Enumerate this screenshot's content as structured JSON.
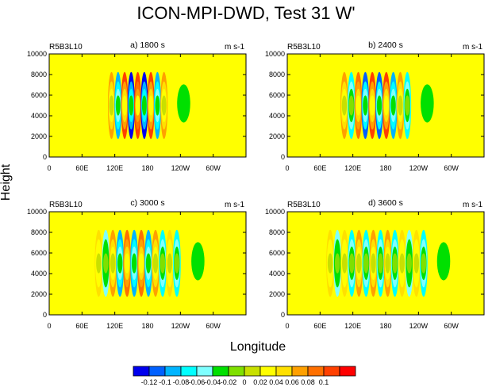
{
  "figure": {
    "title": "ICON-MPI-DWD, Test 31 W'",
    "shared_xlabel": "Longitude",
    "shared_ylabel": "Height"
  },
  "chart_data": [
    {
      "type": "heatmap",
      "left_label": "R5B3L10",
      "title": "a) 1800 s",
      "units": "m s-1",
      "x_ticks": [
        "0",
        "60E",
        "120E",
        "180",
        "120W",
        "60W"
      ],
      "y_ticks": [
        "0",
        "2000",
        "4000",
        "6000",
        "8000",
        "10000"
      ],
      "xlim": [
        0,
        360
      ],
      "ylim": [
        0,
        10000
      ],
      "wave_lon_range": [
        108,
        216
      ],
      "n_bands": 9,
      "band_amplitude": [
        0.07,
        0.08,
        0.1,
        0.12,
        0.12,
        0.12,
        0.1,
        0.08,
        0.07
      ],
      "bg_amplitude": 0.02,
      "bright_bands_lon": [
        [
          0,
          40
        ],
        [
          100,
          122
        ],
        [
          204,
          224
        ],
        [
          284,
          305
        ]
      ],
      "blob": {
        "lon": 246,
        "amplitude": -0.04
      }
    },
    {
      "type": "heatmap",
      "left_label": "R5B3L10",
      "title": "b) 2400 s",
      "units": "m s-1",
      "x_ticks": [
        "0",
        "60E",
        "120E",
        "180",
        "120W",
        "60W"
      ],
      "y_ticks": [
        "0",
        "2000",
        "4000",
        "6000",
        "8000",
        "10000"
      ],
      "xlim": [
        0,
        360
      ],
      "ylim": [
        0,
        10000
      ],
      "wave_lon_range": [
        98,
        226
      ],
      "n_bands": 10,
      "band_amplitude": [
        0.07,
        0.06,
        0.08,
        0.1,
        0.1,
        0.1,
        0.1,
        0.08,
        0.06,
        0.07
      ],
      "bg_amplitude": 0.02,
      "bright_bands_lon": [
        [
          90,
          118
        ],
        [
          214,
          236
        ]
      ],
      "blob": {
        "lon": 256,
        "amplitude": -0.04
      }
    },
    {
      "type": "heatmap",
      "left_label": "R5B3L10",
      "title": "c) 3000 s",
      "units": "m s-1",
      "x_ticks": [
        "0",
        "60E",
        "120E",
        "180",
        "120W",
        "60W"
      ],
      "y_ticks": [
        "0",
        "2000",
        "4000",
        "6000",
        "8000",
        "10000"
      ],
      "xlim": [
        0,
        360
      ],
      "ylim": [
        0,
        10000
      ],
      "wave_lon_range": [
        84,
        240
      ],
      "n_bands": 12,
      "band_amplitude": [
        0.05,
        0.05,
        0.07,
        0.08,
        0.08,
        0.08,
        0.08,
        0.08,
        0.07,
        0.06,
        0.05,
        0.07
      ],
      "bg_amplitude": 0.02,
      "bright_bands_lon": [
        [
          72,
          100
        ],
        [
          226,
          250
        ]
      ],
      "blob": {
        "lon": 272,
        "amplitude": -0.04
      }
    },
    {
      "type": "heatmap",
      "left_label": "R5B3L10",
      "title": "d) 3600 s",
      "units": "m s-1",
      "x_ticks": [
        "0",
        "60E",
        "120E",
        "180",
        "120W",
        "60W"
      ],
      "y_ticks": [
        "0",
        "2000",
        "4000",
        "6000",
        "8000",
        "10000"
      ],
      "xlim": [
        0,
        360
      ],
      "ylim": [
        0,
        10000
      ],
      "wave_lon_range": [
        72,
        256
      ],
      "n_bands": 14,
      "band_amplitude": [
        0.05,
        0.04,
        0.05,
        0.07,
        0.07,
        0.06,
        0.06,
        0.06,
        0.06,
        0.06,
        0.05,
        0.05,
        0.05,
        0.06
      ],
      "bg_amplitude": 0.02,
      "bright_bands_lon": [
        [
          60,
          90
        ],
        [
          240,
          268
        ]
      ],
      "blob": {
        "lon": 286,
        "amplitude": -0.04
      }
    }
  ],
  "colorbar": {
    "labels": [
      "-0.12",
      "-0.1",
      "-0.08",
      "-0.06",
      "-0.04",
      "-0.02",
      "0",
      "0.02",
      "0.04",
      "0.06",
      "0.08",
      "0.1"
    ],
    "colors": [
      "#0000ee",
      "#0060ff",
      "#00b4ff",
      "#00ffff",
      "#7fffff",
      "#00e000",
      "#7fe000",
      "#c8e000",
      "#ffff00",
      "#ffe000",
      "#ffa000",
      "#ff7000",
      "#ff4000",
      "#ff0000"
    ]
  }
}
